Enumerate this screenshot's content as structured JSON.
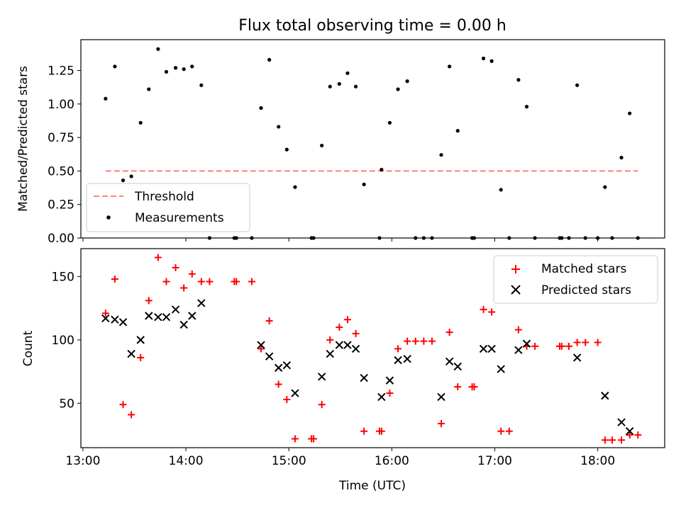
{
  "chart_data": [
    {
      "type": "scatter",
      "title": "Flux total observing time = 0.00 h",
      "xlabel": "",
      "ylabel": "Matched/Predicted stars",
      "xlim": [
        12.98,
        18.65
      ],
      "ylim": [
        0,
        1.48
      ],
      "xticks": [
        13,
        14,
        15,
        16,
        17,
        18
      ],
      "yticks": [
        0.0,
        0.25,
        0.5,
        0.75,
        1.0,
        1.25
      ],
      "ytick_labels": [
        "0.00",
        "0.25",
        "0.50",
        "0.75",
        "1.00",
        "1.25"
      ],
      "legend": {
        "position": "lower-left",
        "entries": [
          "Threshold",
          "Measurements"
        ]
      },
      "threshold": {
        "name": "Threshold",
        "value": 0.5,
        "x_range": [
          13.22,
          18.39
        ],
        "color": "#ff7f7f"
      },
      "series": [
        {
          "name": "Measurements",
          "color": "#000000",
          "points": [
            [
              13.22,
              1.04
            ],
            [
              13.31,
              1.28
            ],
            [
              13.39,
              0.43
            ],
            [
              13.47,
              0.46
            ],
            [
              13.56,
              0.86
            ],
            [
              13.64,
              1.11
            ],
            [
              13.73,
              1.41
            ],
            [
              13.81,
              1.24
            ],
            [
              13.9,
              1.27
            ],
            [
              13.98,
              1.26
            ],
            [
              14.06,
              1.28
            ],
            [
              14.15,
              1.14
            ],
            [
              14.23,
              0.0
            ],
            [
              14.47,
              0.0
            ],
            [
              14.49,
              0.0
            ],
            [
              14.64,
              0.0
            ],
            [
              14.73,
              0.97
            ],
            [
              14.81,
              1.33
            ],
            [
              14.9,
              0.83
            ],
            [
              14.98,
              0.66
            ],
            [
              15.06,
              0.38
            ],
            [
              15.22,
              0.0
            ],
            [
              15.24,
              0.0
            ],
            [
              15.32,
              0.69
            ],
            [
              15.4,
              1.13
            ],
            [
              15.49,
              1.15
            ],
            [
              15.57,
              1.23
            ],
            [
              15.65,
              1.13
            ],
            [
              15.73,
              0.4
            ],
            [
              15.88,
              0.0
            ],
            [
              15.9,
              0.51
            ],
            [
              15.98,
              0.86
            ],
            [
              16.06,
              1.11
            ],
            [
              16.15,
              1.17
            ],
            [
              16.23,
              0.0
            ],
            [
              16.31,
              0.0
            ],
            [
              16.39,
              0.0
            ],
            [
              16.48,
              0.62
            ],
            [
              16.56,
              1.28
            ],
            [
              16.64,
              0.8
            ],
            [
              16.78,
              0.0
            ],
            [
              16.8,
              0.0
            ],
            [
              16.89,
              1.34
            ],
            [
              16.97,
              1.32
            ],
            [
              17.06,
              0.36
            ],
            [
              17.14,
              0.0
            ],
            [
              17.23,
              1.18
            ],
            [
              17.31,
              0.98
            ],
            [
              17.39,
              0.0
            ],
            [
              17.63,
              0.0
            ],
            [
              17.65,
              0.0
            ],
            [
              17.72,
              0.0
            ],
            [
              17.8,
              1.14
            ],
            [
              17.88,
              0.0
            ],
            [
              18.0,
              0.0
            ],
            [
              18.07,
              0.38
            ],
            [
              18.14,
              0.0
            ],
            [
              18.23,
              0.6
            ],
            [
              18.31,
              0.93
            ],
            [
              18.39,
              0.0
            ]
          ]
        }
      ]
    },
    {
      "type": "scatter",
      "title": "",
      "xlabel": "Time (UTC)",
      "ylabel": "Count",
      "xlim": [
        12.98,
        18.65
      ],
      "ylim": [
        15,
        172
      ],
      "xticks": [
        13,
        14,
        15,
        16,
        17,
        18
      ],
      "xtick_labels": [
        "13:00",
        "14:00",
        "15:00",
        "16:00",
        "17:00",
        "18:00"
      ],
      "yticks": [
        50,
        100,
        150
      ],
      "ytick_labels": [
        "50",
        "100",
        "150"
      ],
      "legend": {
        "position": "top-right",
        "entries": [
          "Matched stars",
          "Predicted stars"
        ]
      },
      "series": [
        {
          "name": "Matched stars",
          "marker": "plus",
          "color": "#ff0000",
          "points": [
            [
              13.22,
              121
            ],
            [
              13.31,
              148
            ],
            [
              13.39,
              49
            ],
            [
              13.47,
              41
            ],
            [
              13.56,
              86
            ],
            [
              13.64,
              131
            ],
            [
              13.73,
              165
            ],
            [
              13.81,
              146
            ],
            [
              13.9,
              157
            ],
            [
              13.98,
              141
            ],
            [
              14.06,
              152
            ],
            [
              14.15,
              146
            ],
            [
              14.23,
              146
            ],
            [
              14.47,
              146
            ],
            [
              14.49,
              146
            ],
            [
              14.64,
              146
            ],
            [
              14.73,
              93
            ],
            [
              14.81,
              115
            ],
            [
              14.9,
              65
            ],
            [
              14.98,
              53
            ],
            [
              15.06,
              22
            ],
            [
              15.22,
              22
            ],
            [
              15.24,
              22
            ],
            [
              15.32,
              49
            ],
            [
              15.4,
              100
            ],
            [
              15.49,
              110
            ],
            [
              15.57,
              116
            ],
            [
              15.65,
              105
            ],
            [
              15.73,
              28
            ],
            [
              15.88,
              28
            ],
            [
              15.9,
              28
            ],
            [
              15.98,
              58
            ],
            [
              16.06,
              93
            ],
            [
              16.15,
              99
            ],
            [
              16.23,
              99
            ],
            [
              16.31,
              99
            ],
            [
              16.39,
              99
            ],
            [
              16.48,
              34
            ],
            [
              16.56,
              106
            ],
            [
              16.64,
              63
            ],
            [
              16.78,
              63
            ],
            [
              16.8,
              63
            ],
            [
              16.89,
              124
            ],
            [
              16.97,
              122
            ],
            [
              17.06,
              28
            ],
            [
              17.14,
              28
            ],
            [
              17.23,
              108
            ],
            [
              17.31,
              95
            ],
            [
              17.39,
              95
            ],
            [
              17.63,
              95
            ],
            [
              17.65,
              95
            ],
            [
              17.72,
              95
            ],
            [
              17.8,
              98
            ],
            [
              17.88,
              98
            ],
            [
              18.0,
              98
            ],
            [
              18.07,
              21
            ],
            [
              18.14,
              21
            ],
            [
              18.23,
              21
            ],
            [
              18.31,
              25
            ],
            [
              18.39,
              25
            ]
          ]
        },
        {
          "name": "Predicted stars",
          "marker": "x",
          "color": "#000000",
          "points": [
            [
              13.22,
              117
            ],
            [
              13.31,
              116
            ],
            [
              13.39,
              114
            ],
            [
              13.47,
              89
            ],
            [
              13.56,
              100
            ],
            [
              13.64,
              119
            ],
            [
              13.73,
              118
            ],
            [
              13.81,
              118
            ],
            [
              13.9,
              124
            ],
            [
              13.98,
              112
            ],
            [
              14.06,
              119
            ],
            [
              14.15,
              129
            ],
            [
              14.73,
              96
            ],
            [
              14.81,
              87
            ],
            [
              14.9,
              78
            ],
            [
              14.98,
              80
            ],
            [
              15.06,
              58
            ],
            [
              15.32,
              71
            ],
            [
              15.4,
              89
            ],
            [
              15.49,
              96
            ],
            [
              15.57,
              96
            ],
            [
              15.65,
              93
            ],
            [
              15.73,
              70
            ],
            [
              15.9,
              55
            ],
            [
              15.98,
              68
            ],
            [
              16.06,
              84
            ],
            [
              16.15,
              85
            ],
            [
              16.48,
              55
            ],
            [
              16.56,
              83
            ],
            [
              16.64,
              79
            ],
            [
              16.89,
              93
            ],
            [
              16.97,
              93
            ],
            [
              17.06,
              77
            ],
            [
              17.23,
              92
            ],
            [
              17.31,
              97
            ],
            [
              17.8,
              86
            ],
            [
              18.07,
              56
            ],
            [
              18.23,
              35
            ],
            [
              18.31,
              28
            ]
          ]
        }
      ]
    }
  ]
}
